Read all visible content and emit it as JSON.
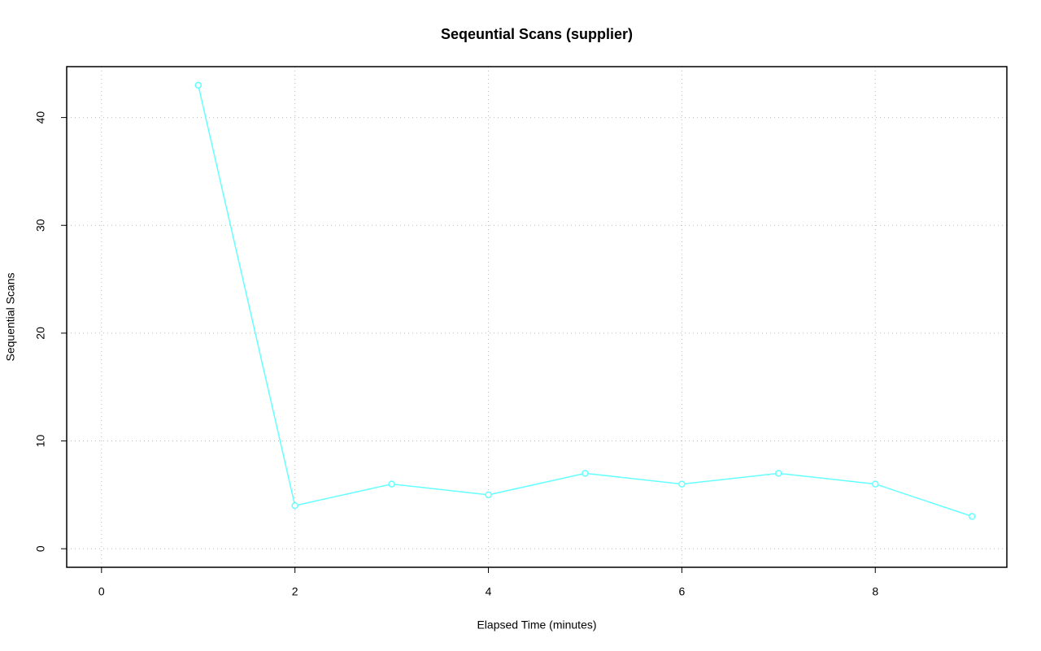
{
  "chart_data": {
    "type": "line",
    "title": "Seqeuntial Scans (supplier)",
    "x_label": "Elapsed Time (minutes)",
    "y_label": "Sequential Scans",
    "x": [
      1,
      2,
      3,
      4,
      5,
      6,
      7,
      8,
      9
    ],
    "series": [
      {
        "name": "supplier",
        "color": "#66ffff",
        "values": [
          43,
          4,
          6,
          5,
          7,
          6,
          7,
          6,
          3
        ]
      }
    ],
    "xlim": [
      -0.36,
      9.36
    ],
    "xticks": [
      0,
      2,
      4,
      6,
      8
    ],
    "ylim": [
      -1.72,
      44.72
    ],
    "yticks": [
      0,
      10,
      20,
      30,
      40
    ],
    "grid": true
  }
}
